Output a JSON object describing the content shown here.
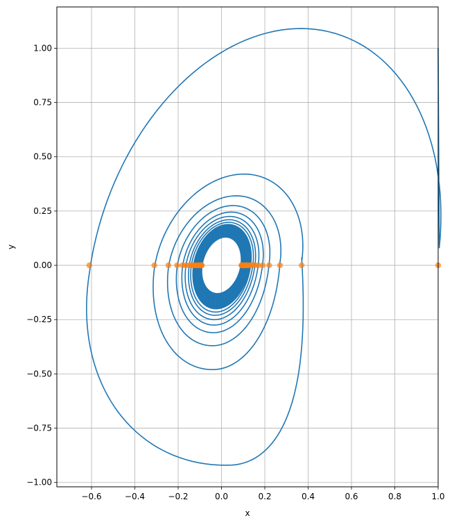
{
  "chart_data": {
    "type": "line",
    "xlabel": "x",
    "ylabel": "y",
    "xlim": [
      -0.76,
      1.0
    ],
    "ylim": [
      -1.02,
      1.19
    ],
    "grid": true,
    "x_ticks": [
      -0.6,
      -0.4,
      -0.2,
      0.0,
      0.2,
      0.4,
      0.6,
      0.8,
      1.0
    ],
    "x_tick_labels": [
      "−0.6",
      "−0.4",
      "−0.2",
      "0.0",
      "0.2",
      "0.4",
      "0.6",
      "0.8",
      "1.0"
    ],
    "y_ticks": [
      -1.0,
      -0.75,
      -0.5,
      -0.25,
      0.0,
      0.25,
      0.5,
      0.75,
      1.0
    ],
    "y_tick_labels": [
      "−1.00",
      "−0.75",
      "−0.50",
      "−0.25",
      "0.00",
      "0.25",
      "0.50",
      "0.75",
      "1.00"
    ],
    "series": [
      {
        "kind": "spiral-line",
        "color": "#1f77b4",
        "start": [
          1.0,
          1.0
        ],
        "loops": [
          {
            "x_right": 1.0,
            "y_top": 1.09,
            "x_left": -0.61,
            "y_bottom": -0.92
          },
          {
            "x_right": 0.37,
            "y_top": 0.42,
            "x_left": -0.31,
            "y_bottom": -0.48
          },
          {
            "x_right": 0.27,
            "y_top": 0.32,
            "x_left": -0.245,
            "y_bottom": -0.37
          },
          {
            "x_right": 0.22,
            "y_top": 0.275,
            "x_left": -0.205,
            "y_bottom": -0.31
          },
          {
            "x_right": 0.19,
            "y_top": 0.245,
            "x_left": -0.18,
            "y_bottom": -0.275
          },
          {
            "x_right": 0.17,
            "y_top": 0.225,
            "x_left": -0.165,
            "y_bottom": -0.25
          },
          {
            "x_right": 0.155,
            "y_top": 0.21,
            "x_left": -0.15,
            "y_bottom": -0.23
          },
          {
            "x_right": 0.145,
            "y_top": 0.198,
            "x_left": -0.14,
            "y_bottom": -0.215
          },
          {
            "x_right": 0.135,
            "y_top": 0.188,
            "x_left": -0.13,
            "y_bottom": -0.2
          }
        ],
        "inner_limit": {
          "rx": 0.09,
          "ry": 0.13
        },
        "inner_turns": 14
      },
      {
        "kind": "scatter",
        "color": "#ff7f0e",
        "points": [
          [
            1.0,
            0.0
          ],
          [
            -0.61,
            0.0
          ],
          [
            0.37,
            0.0
          ],
          [
            -0.31,
            0.0
          ],
          [
            0.27,
            0.0
          ],
          [
            -0.245,
            0.0
          ],
          [
            0.22,
            0.0
          ],
          [
            -0.205,
            0.0
          ],
          [
            0.19,
            0.0
          ],
          [
            -0.18,
            0.0
          ],
          [
            0.17,
            0.0
          ],
          [
            -0.165,
            0.0
          ],
          [
            0.155,
            0.0
          ],
          [
            -0.15,
            0.0
          ],
          [
            0.145,
            0.0
          ],
          [
            -0.14,
            0.0
          ],
          [
            0.135,
            0.0
          ],
          [
            -0.13,
            0.0
          ],
          [
            0.128,
            0.0
          ],
          [
            -0.124,
            0.0
          ],
          [
            0.122,
            0.0
          ],
          [
            -0.118,
            0.0
          ],
          [
            0.117,
            0.0
          ],
          [
            -0.113,
            0.0
          ],
          [
            0.112,
            0.0
          ],
          [
            -0.109,
            0.0
          ],
          [
            0.108,
            0.0
          ],
          [
            -0.105,
            0.0
          ],
          [
            0.104,
            0.0
          ],
          [
            -0.102,
            0.0
          ],
          [
            0.101,
            0.0
          ],
          [
            -0.099,
            0.0
          ],
          [
            0.098,
            0.0
          ],
          [
            -0.097,
            0.0
          ],
          [
            0.096,
            0.0
          ],
          [
            -0.095,
            0.0
          ],
          [
            0.094,
            0.0
          ],
          [
            -0.093,
            0.0
          ],
          [
            0.093,
            0.0
          ],
          [
            -0.092,
            0.0
          ],
          [
            0.092,
            0.0
          ],
          [
            -0.091,
            0.0
          ]
        ]
      }
    ]
  }
}
